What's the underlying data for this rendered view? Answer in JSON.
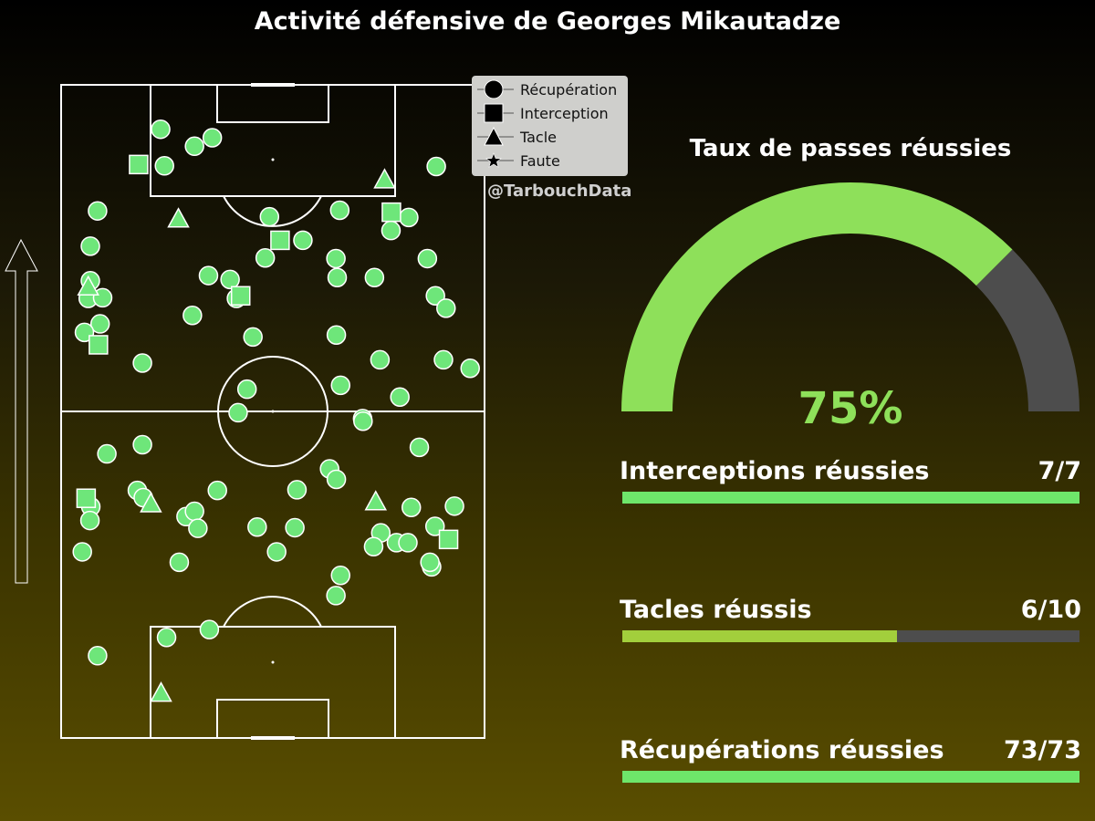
{
  "title": "Activité défensive de Georges Mikautadze",
  "credit": "@TarbouchData",
  "colors": {
    "point_fill": "#6ee67a",
    "point_stroke": "#ffffff",
    "pitch_line": "#ffffff",
    "gauge_fill": "#8ee05a",
    "gauge_rest": "#4d4d4d",
    "bar_full": "#6ee66a",
    "bar_partial": "#a2cf3c",
    "bar_track": "#4d4d4d"
  },
  "legend": {
    "items": [
      {
        "label": "Récupération",
        "marker": "circle"
      },
      {
        "label": "Interception",
        "marker": "square"
      },
      {
        "label": "Tacle",
        "marker": "triangle"
      },
      {
        "label": "Faute",
        "marker": "star"
      }
    ]
  },
  "chart_data": [
    {
      "type": "scatter",
      "description_axis": "pitch coordinates 0-100 length (attack upward), 0-100 width",
      "xlim": [
        0,
        100
      ],
      "ylim": [
        0,
        100
      ],
      "direction_arrow": "up",
      "series": [
        {
          "name": "Récupération",
          "marker": "circle",
          "points": [
            [
              23.5,
              93.2
            ],
            [
              31.5,
              90.6
            ],
            [
              35.7,
              91.9
            ],
            [
              24.4,
              87.6
            ],
            [
              88.6,
              87.5
            ],
            [
              8.6,
              80.7
            ],
            [
              49.2,
              79.8
            ],
            [
              65.8,
              80.8
            ],
            [
              82.1,
              79.7
            ],
            [
              6.9,
              75.3
            ],
            [
              57.1,
              76.2
            ],
            [
              48.2,
              73.5
            ],
            [
              64.9,
              73.4
            ],
            [
              77.9,
              77.7
            ],
            [
              86.5,
              73.4
            ],
            [
              34.8,
              70.8
            ],
            [
              39.9,
              70.2
            ],
            [
              65.2,
              70.5
            ],
            [
              74.0,
              70.5
            ],
            [
              6.9,
              70.0
            ],
            [
              6.4,
              67.3
            ],
            [
              9.8,
              67.4
            ],
            [
              41.4,
              67.3
            ],
            [
              88.4,
              67.7
            ],
            [
              90.9,
              65.8
            ],
            [
              31.0,
              64.7
            ],
            [
              9.2,
              63.4
            ],
            [
              5.5,
              62.1
            ],
            [
              45.3,
              61.4
            ],
            [
              65.0,
              61.7
            ],
            [
              19.2,
              57.4
            ],
            [
              75.3,
              57.9
            ],
            [
              90.3,
              57.9
            ],
            [
              96.6,
              56.6
            ],
            [
              43.9,
              53.4
            ],
            [
              66.0,
              54.0
            ],
            [
              80.0,
              52.2
            ],
            [
              41.8,
              49.8
            ],
            [
              71.2,
              48.9
            ],
            [
              71.3,
              48.5
            ],
            [
              10.8,
              43.5
            ],
            [
              19.2,
              44.9
            ],
            [
              84.6,
              44.5
            ],
            [
              63.4,
              41.2
            ],
            [
              65.0,
              39.6
            ],
            [
              18.0,
              37.9
            ],
            [
              7.0,
              35.4
            ],
            [
              19.4,
              36.8
            ],
            [
              36.9,
              37.9
            ],
            [
              55.7,
              38.0
            ],
            [
              82.7,
              35.3
            ],
            [
              92.9,
              35.5
            ],
            [
              6.8,
              33.3
            ],
            [
              29.5,
              33.9
            ],
            [
              31.5,
              34.7
            ],
            [
              32.3,
              32.1
            ],
            [
              46.3,
              32.3
            ],
            [
              55.2,
              32.2
            ],
            [
              88.3,
              32.4
            ],
            [
              75.5,
              31.4
            ],
            [
              79.2,
              29.9
            ],
            [
              81.9,
              29.9
            ],
            [
              73.8,
              29.3
            ],
            [
              5.0,
              28.5
            ],
            [
              27.9,
              26.9
            ],
            [
              50.9,
              28.5
            ],
            [
              87.5,
              26.2
            ],
            [
              87.1,
              26.9
            ],
            [
              66.0,
              24.9
            ],
            [
              64.9,
              21.8
            ],
            [
              24.9,
              15.4
            ],
            [
              35.0,
              16.6
            ],
            [
              8.6,
              12.6
            ]
          ]
        },
        {
          "name": "Interception",
          "marker": "square",
          "points": [
            [
              18.3,
              87.8
            ],
            [
              78.0,
              80.5
            ],
            [
              51.7,
              76.2
            ],
            [
              42.4,
              67.7
            ],
            [
              8.8,
              60.2
            ],
            [
              5.9,
              36.7
            ],
            [
              91.5,
              30.4
            ]
          ]
        },
        {
          "name": "Tacle",
          "marker": "triangle",
          "points": [
            [
              76.4,
              85.5
            ],
            [
              27.7,
              79.5
            ],
            [
              6.4,
              69.1
            ],
            [
              21.2,
              35.9
            ],
            [
              74.3,
              36.2
            ],
            [
              23.6,
              6.9
            ]
          ]
        },
        {
          "name": "Faute",
          "marker": "star",
          "points": []
        }
      ]
    },
    {
      "type": "gauge",
      "title": "Taux de passes réussies",
      "value": 75,
      "max": 100,
      "label": "75%"
    },
    {
      "type": "bar",
      "orientation": "horizontal",
      "categories": [
        "Interceptions réussies",
        "Tacles réussis",
        "Récupérations réussies"
      ],
      "series": [
        {
          "values": [
            7,
            6,
            73
          ]
        }
      ],
      "totals": [
        7,
        10,
        73
      ],
      "labels": [
        "7/7",
        "6/10",
        "73/73"
      ]
    }
  ]
}
